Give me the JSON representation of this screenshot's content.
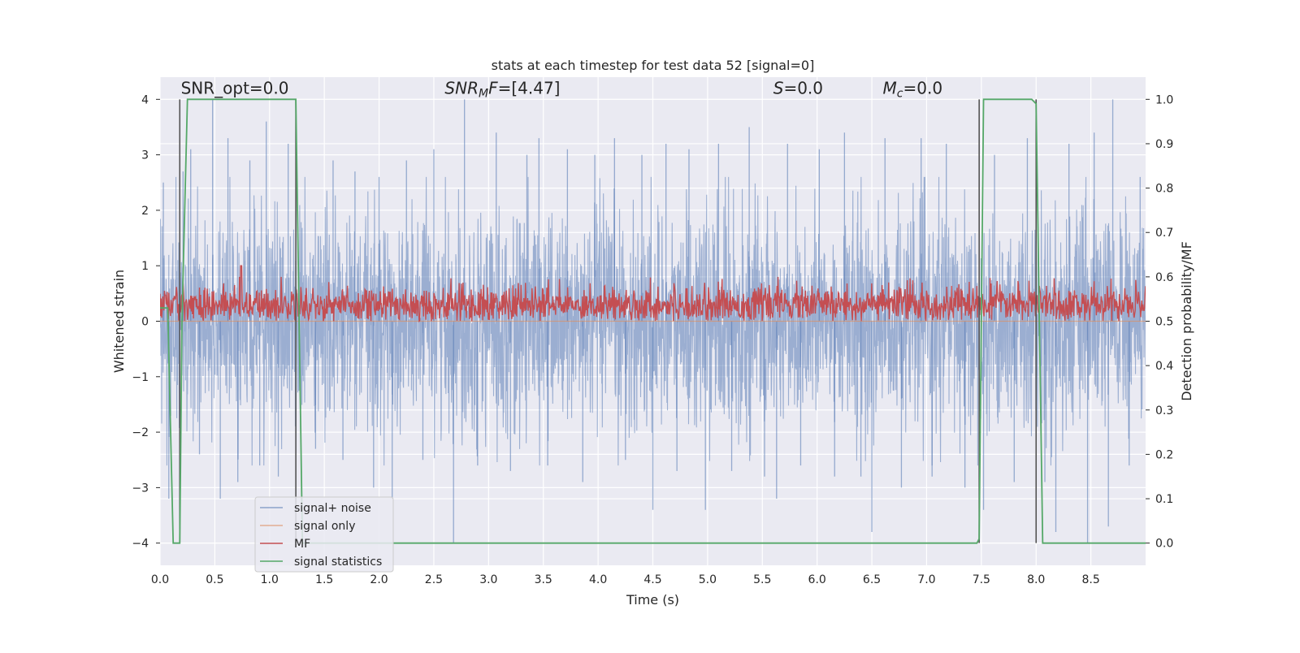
{
  "chart_data": {
    "type": "line",
    "title": "stats at each timestep for test data 52 [signal=0]",
    "xlabel": "Time (s)",
    "ylabel_left": "Whitened strain",
    "ylabel_right": "Detection probability/MF",
    "xlim": [
      0.0,
      9.0
    ],
    "ylim_left": [
      -4.4,
      4.4
    ],
    "ylim_right": [
      -0.05,
      1.05
    ],
    "grid": true,
    "legend_position": "lower-left",
    "x_ticks": [
      "0.0",
      "0.5",
      "1.0",
      "1.5",
      "2.0",
      "2.5",
      "3.0",
      "3.5",
      "4.0",
      "4.5",
      "5.0",
      "5.5",
      "6.0",
      "6.5",
      "7.0",
      "7.5",
      "8.0",
      "8.5"
    ],
    "x_tick_values": [
      0.0,
      0.5,
      1.0,
      1.5,
      2.0,
      2.5,
      3.0,
      3.5,
      4.0,
      4.5,
      5.0,
      5.5,
      6.0,
      6.5,
      7.0,
      7.5,
      8.0,
      8.5
    ],
    "y_left_ticks": [
      "−4",
      "−3",
      "−2",
      "−1",
      "0",
      "1",
      "2",
      "3",
      "4"
    ],
    "y_left_tick_values": [
      -4,
      -3,
      -2,
      -1,
      0,
      1,
      2,
      3,
      4
    ],
    "y_right_ticks": [
      "0.0",
      "0.1",
      "0.2",
      "0.3",
      "0.4",
      "0.5",
      "0.6",
      "0.7",
      "0.8",
      "0.9",
      "1.0"
    ],
    "y_right_tick_values": [
      0.0,
      0.1,
      0.2,
      0.3,
      0.4,
      0.5,
      0.6,
      0.7,
      0.8,
      0.9,
      1.0
    ],
    "annotations": [
      {
        "name": "snr-opt",
        "html": "SNR_opt=0.0",
        "x": 0.19,
        "y": 4.1
      },
      {
        "name": "snr-mf",
        "html": "<tspan font-style='italic'>SNR</tspan><tspan font-style='italic' font-size='14' dy='4'>M</tspan><tspan font-style='italic' dy='-4'>F</tspan>=[4.47]",
        "x": 2.6,
        "y": 4.1
      },
      {
        "name": "s-value",
        "html": "<tspan font-style='italic'>S</tspan>=0.0",
        "x": 5.6,
        "y": 4.1
      },
      {
        "name": "mc-value",
        "html": "<tspan font-style='italic'>M</tspan><tspan font-style='italic' font-size='14' dy='4'>c</tspan><tspan dy='-4'>=0.0</tspan>",
        "x": 6.6,
        "y": 4.1
      }
    ],
    "vertical_markers": [
      0.18,
      1.24,
      7.48,
      8.0
    ],
    "vertical_marker_range": [
      -4.0,
      4.0
    ],
    "series": [
      {
        "name": "signal+ noise",
        "color": "#4c72b0",
        "axis": "left",
        "description_values": "dense noise, |y| typically < 1.7, peaks to ~4",
        "x": [
          0.0,
          9.0
        ],
        "envelope_positive": [
          1.7,
          1.7
        ],
        "envelope_negative": [
          -1.7,
          -1.7
        ],
        "peaks": [
          [
            0.03,
            2.5
          ],
          [
            0.08,
            -3.2
          ],
          [
            0.21,
            2.7
          ],
          [
            0.28,
            3.1
          ],
          [
            0.36,
            -2.4
          ],
          [
            0.48,
            4.0
          ],
          [
            0.55,
            -3.2
          ],
          [
            0.62,
            3.3
          ],
          [
            0.71,
            -2.9
          ],
          [
            0.82,
            2.9
          ],
          [
            0.91,
            -2.6
          ],
          [
            0.97,
            3.6
          ],
          [
            1.08,
            -2.8
          ],
          [
            1.17,
            3.2
          ],
          [
            1.42,
            -2.3
          ],
          [
            1.58,
            2.9
          ],
          [
            1.67,
            -2.5
          ],
          [
            1.78,
            2.7
          ],
          [
            1.95,
            -3.0
          ],
          [
            2.0,
            2.6
          ],
          [
            2.12,
            -3.2
          ],
          [
            2.25,
            2.9
          ],
          [
            2.4,
            -2.5
          ],
          [
            2.5,
            3.1
          ],
          [
            2.68,
            -4.0
          ],
          [
            2.78,
            4.0
          ],
          [
            2.9,
            -2.6
          ],
          [
            3.07,
            3.4
          ],
          [
            3.2,
            -2.7
          ],
          [
            3.35,
            3.0
          ],
          [
            3.46,
            3.3
          ],
          [
            3.54,
            -2.6
          ],
          [
            3.72,
            3.1
          ],
          [
            3.86,
            -2.9
          ],
          [
            3.97,
            3.0
          ],
          [
            4.15,
            3.3
          ],
          [
            4.25,
            -2.5
          ],
          [
            4.4,
            3.0
          ],
          [
            4.5,
            -3.4
          ],
          [
            4.62,
            3.2
          ],
          [
            4.72,
            -2.7
          ],
          [
            4.83,
            3.1
          ],
          [
            4.98,
            -3.4
          ],
          [
            5.1,
            3.2
          ],
          [
            5.22,
            -2.7
          ],
          [
            5.38,
            3.5
          ],
          [
            5.52,
            -2.8
          ],
          [
            5.63,
            -3.2
          ],
          [
            5.73,
            3.2
          ],
          [
            5.85,
            -2.6
          ],
          [
            6.02,
            3.1
          ],
          [
            6.16,
            -2.8
          ],
          [
            6.25,
            3.4
          ],
          [
            6.4,
            -2.8
          ],
          [
            6.5,
            -3.8
          ],
          [
            6.62,
            3.3
          ],
          [
            6.77,
            -3.0
          ],
          [
            6.95,
            3.3
          ],
          [
            7.05,
            -2.8
          ],
          [
            7.18,
            3.2
          ],
          [
            7.35,
            -3.0
          ],
          [
            7.52,
            -3.4
          ],
          [
            7.62,
            3.0
          ],
          [
            7.8,
            -2.9
          ],
          [
            7.92,
            3.3
          ],
          [
            8.08,
            -2.9
          ],
          [
            8.18,
            -3.8
          ],
          [
            8.3,
            3.2
          ],
          [
            8.47,
            -4.0
          ],
          [
            8.53,
            3.4
          ],
          [
            8.66,
            -3.7
          ],
          [
            8.7,
            4.0
          ],
          [
            8.85,
            -2.6
          ],
          [
            8.95,
            2.6
          ]
        ]
      },
      {
        "name": "signal only",
        "color": "#dd8452",
        "axis": "left",
        "x": [
          0.0,
          9.0
        ],
        "y": [
          0.0,
          0.0
        ]
      },
      {
        "name": "MF",
        "color": "#c44e52",
        "axis": "left",
        "description_values": "dense positive trace between ~0 and ~0.8, peak 1.0 near t=0.74",
        "range": [
          0.0,
          0.8
        ],
        "peak": [
          0.74,
          1.0
        ]
      },
      {
        "name": "signal statistics",
        "color": "#55a868",
        "axis": "right",
        "x": [
          0.0,
          0.07,
          0.12,
          0.18,
          0.2,
          0.25,
          1.24,
          1.3,
          2.2,
          7.46,
          7.48,
          7.52,
          7.96,
          8.0,
          8.06,
          9.0
        ],
        "y": [
          0.53,
          0.53,
          0.0,
          0.0,
          0.5,
          1.0,
          1.0,
          0.0,
          0.0,
          0.0,
          0.01,
          1.0,
          1.0,
          0.99,
          0.0,
          0.0
        ]
      }
    ]
  }
}
